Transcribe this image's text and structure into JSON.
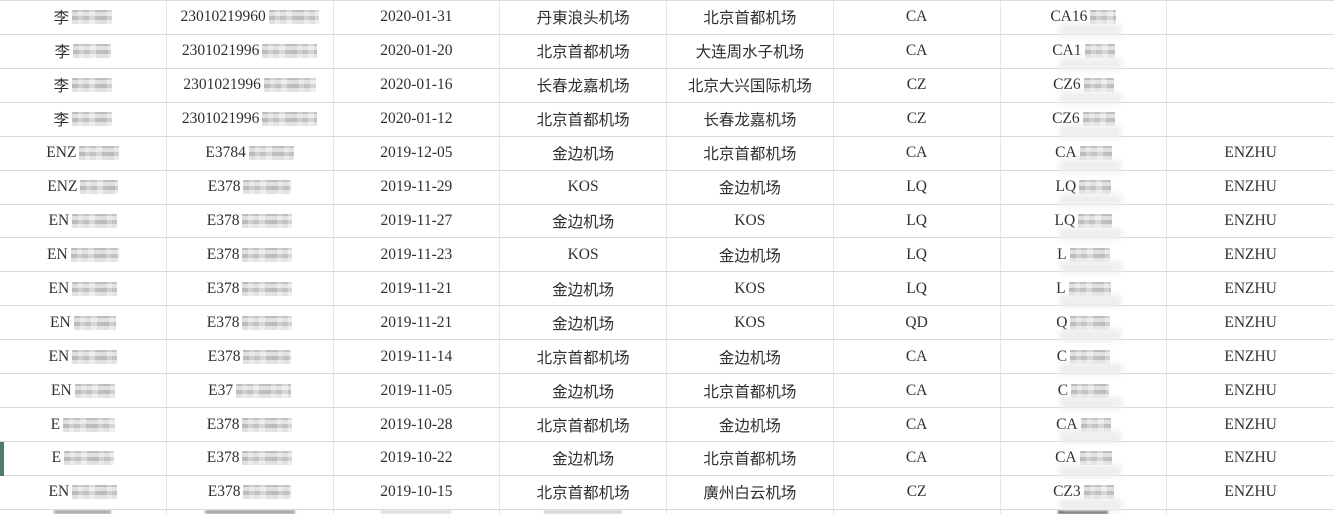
{
  "app": {
    "context": "spreadsheet flight records table",
    "redaction_style": "pixelated mosaic blocks over personal data"
  },
  "colors": {
    "selection_green": "#4e7e67",
    "row_border": "#d9d9d9",
    "column_border": "#e6e6e6",
    "text": "#2f2f2f",
    "mosaic_gray": "#cccccc"
  },
  "selection_marker": {
    "row_index": 13
  },
  "table": {
    "column_keys": [
      "passenger-name",
      "id-number",
      "flight-date",
      "departure-airport",
      "arrival-airport",
      "airline-code",
      "flight-number",
      "passenger-code"
    ],
    "rows": [
      [
        {
          "t": "李",
          "m": 40
        },
        {
          "t": "23010219960",
          "m": 50
        },
        {
          "t": "2020-01-31"
        },
        {
          "t": "丹東浪头机场"
        },
        {
          "t": "北京首都机场"
        },
        {
          "t": "CA"
        },
        {
          "t": "CA16",
          "m": 26,
          "b": 1
        },
        {
          "t": ""
        }
      ],
      [
        {
          "t": "李",
          "m": 38
        },
        {
          "t": "2301021996",
          "m": 55
        },
        {
          "t": "2020-01-20"
        },
        {
          "t": "北京首都机场"
        },
        {
          "t": "大连周水子机场"
        },
        {
          "t": "CA"
        },
        {
          "t": "CA1",
          "m": 30,
          "b": 1
        },
        {
          "t": ""
        }
      ],
      [
        {
          "t": "李",
          "m": 40
        },
        {
          "t": "2301021996",
          "m": 52
        },
        {
          "t": "2020-01-16"
        },
        {
          "t": "长春龙嘉机场"
        },
        {
          "t": "北京大兴国际机场"
        },
        {
          "t": "CZ"
        },
        {
          "t": "CZ6",
          "m": 30,
          "b": 1
        },
        {
          "t": ""
        }
      ],
      [
        {
          "t": "李",
          "m": 40
        },
        {
          "t": "2301021996",
          "m": 55
        },
        {
          "t": "2020-01-12"
        },
        {
          "t": "北京首都机场"
        },
        {
          "t": "长春龙嘉机场"
        },
        {
          "t": "CZ"
        },
        {
          "t": "CZ6",
          "m": 32,
          "b": 1
        },
        {
          "t": ""
        }
      ],
      [
        {
          "t": "ENZ",
          "m": 40
        },
        {
          "t": "E3784",
          "m": 45
        },
        {
          "t": "2019-12-05"
        },
        {
          "t": "金边机场"
        },
        {
          "t": "北京首都机场"
        },
        {
          "t": "CA"
        },
        {
          "t": "CA",
          "m": 32,
          "b": 1
        },
        {
          "t": "ENZHU"
        }
      ],
      [
        {
          "t": "ENZ",
          "m": 38
        },
        {
          "t": "E378",
          "m": 48
        },
        {
          "t": "2019-11-29"
        },
        {
          "t": "KOS"
        },
        {
          "t": "金边机场"
        },
        {
          "t": "LQ"
        },
        {
          "t": "LQ",
          "m": 32,
          "b": 1
        },
        {
          "t": "ENZHU"
        }
      ],
      [
        {
          "t": "EN",
          "m": 45
        },
        {
          "t": "E378",
          "m": 50
        },
        {
          "t": "2019-11-27"
        },
        {
          "t": "金边机场"
        },
        {
          "t": "KOS"
        },
        {
          "t": "LQ"
        },
        {
          "t": "LQ",
          "m": 34,
          "b": 1
        },
        {
          "t": "ENZHU"
        }
      ],
      [
        {
          "t": "EN",
          "m": 48
        },
        {
          "t": "E378",
          "m": 50
        },
        {
          "t": "2019-11-23"
        },
        {
          "t": "KOS"
        },
        {
          "t": "金边机场"
        },
        {
          "t": "LQ"
        },
        {
          "t": "L",
          "m": 40,
          "b": 1
        },
        {
          "t": "ENZHU"
        }
      ],
      [
        {
          "t": "EN",
          "m": 45
        },
        {
          "t": "E378",
          "m": 50
        },
        {
          "t": "2019-11-21"
        },
        {
          "t": "金边机场"
        },
        {
          "t": "KOS"
        },
        {
          "t": "LQ"
        },
        {
          "t": "L",
          "m": 42,
          "b": 1
        },
        {
          "t": "ENZHU"
        }
      ],
      [
        {
          "t": "EN",
          "m": 42
        },
        {
          "t": "E378",
          "m": 50
        },
        {
          "t": "2019-11-21"
        },
        {
          "t": "金边机场"
        },
        {
          "t": "KOS"
        },
        {
          "t": "QD"
        },
        {
          "t": "Q",
          "m": 40,
          "b": 1
        },
        {
          "t": "ENZHU"
        }
      ],
      [
        {
          "t": "EN",
          "m": 45
        },
        {
          "t": "E378",
          "m": 48
        },
        {
          "t": "2019-11-14"
        },
        {
          "t": "北京首都机场"
        },
        {
          "t": "金边机场"
        },
        {
          "t": "CA"
        },
        {
          "t": "C",
          "m": 40,
          "b": 1
        },
        {
          "t": "ENZHU"
        }
      ],
      [
        {
          "t": "EN",
          "m": 40
        },
        {
          "t": "E37",
          "m": 55
        },
        {
          "t": "2019-11-05"
        },
        {
          "t": "金边机场"
        },
        {
          "t": "北京首都机场"
        },
        {
          "t": "CA"
        },
        {
          "t": "C",
          "m": 38,
          "b": 1
        },
        {
          "t": "ENZHU"
        }
      ],
      [
        {
          "t": "E",
          "m": 52
        },
        {
          "t": "E378",
          "m": 50
        },
        {
          "t": "2019-10-28"
        },
        {
          "t": "北京首都机场"
        },
        {
          "t": "金边机场"
        },
        {
          "t": "CA"
        },
        {
          "t": "CA",
          "m": 30,
          "b": 1
        },
        {
          "t": "ENZHU"
        }
      ],
      [
        {
          "t": "E",
          "m": 50
        },
        {
          "t": "E378",
          "m": 50
        },
        {
          "t": "2019-10-22"
        },
        {
          "t": "金边机场"
        },
        {
          "t": "北京首都机场"
        },
        {
          "t": "CA"
        },
        {
          "t": "CA",
          "m": 32,
          "b": 1
        },
        {
          "t": "ENZHU"
        }
      ],
      [
        {
          "t": "EN",
          "m": 45
        },
        {
          "t": "E378",
          "m": 48
        },
        {
          "t": "2019-10-15"
        },
        {
          "t": "北京首都机场"
        },
        {
          "t": "廣州白云机场"
        },
        {
          "t": "CZ"
        },
        {
          "t": "CZ3",
          "m": 30,
          "b": 1
        },
        {
          "t": "ENZHU"
        }
      ]
    ],
    "partial_row": [
      {
        "m": 57,
        "tone": "#a8a8a8"
      },
      {
        "m": 90,
        "tone": "#a2a2a2"
      },
      {
        "m": 70,
        "tone": "#dcdcdc"
      },
      {
        "m": 78,
        "tone": "#d4d4d4"
      },
      {},
      {},
      {
        "m": 50,
        "tone": "#4f4f4f"
      },
      {}
    ]
  }
}
